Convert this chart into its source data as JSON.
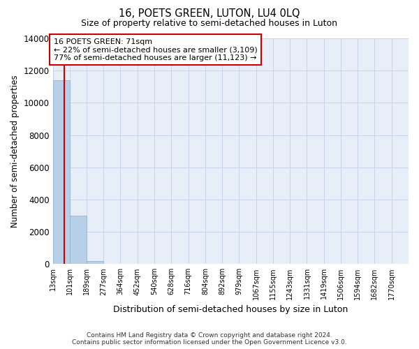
{
  "title": "16, POETS GREEN, LUTON, LU4 0LQ",
  "subtitle": "Size of property relative to semi-detached houses in Luton",
  "xlabel": "Distribution of semi-detached houses by size in Luton",
  "ylabel": "Number of semi-detached properties",
  "property_size": 71,
  "annotation_line1": "16 POETS GREEN: 71sqm",
  "annotation_line2": "← 22% of semi-detached houses are smaller (3,109)",
  "annotation_line3": "77% of semi-detached houses are larger (11,123) →",
  "bin_edges": [
    13,
    101,
    189,
    277,
    364,
    452,
    540,
    628,
    716,
    804,
    892,
    979,
    1067,
    1155,
    1243,
    1331,
    1419,
    1506,
    1594,
    1682,
    1770
  ],
  "bar_heights": [
    11400,
    3000,
    200,
    0,
    0,
    0,
    0,
    0,
    0,
    0,
    0,
    0,
    0,
    0,
    0,
    0,
    0,
    0,
    0,
    0
  ],
  "bar_color": "#b8cfe8",
  "bar_edgecolor": "#8aaed0",
  "grid_color": "#c8d4e8",
  "background_color": "#e8eef8",
  "red_line_color": "#cc0000",
  "annotation_box_color": "#cc0000",
  "ylim": [
    0,
    14000
  ],
  "yticks": [
    0,
    2000,
    4000,
    6000,
    8000,
    10000,
    12000,
    14000
  ],
  "footer_line1": "Contains HM Land Registry data © Crown copyright and database right 2024.",
  "footer_line2": "Contains public sector information licensed under the Open Government Licence v3.0."
}
